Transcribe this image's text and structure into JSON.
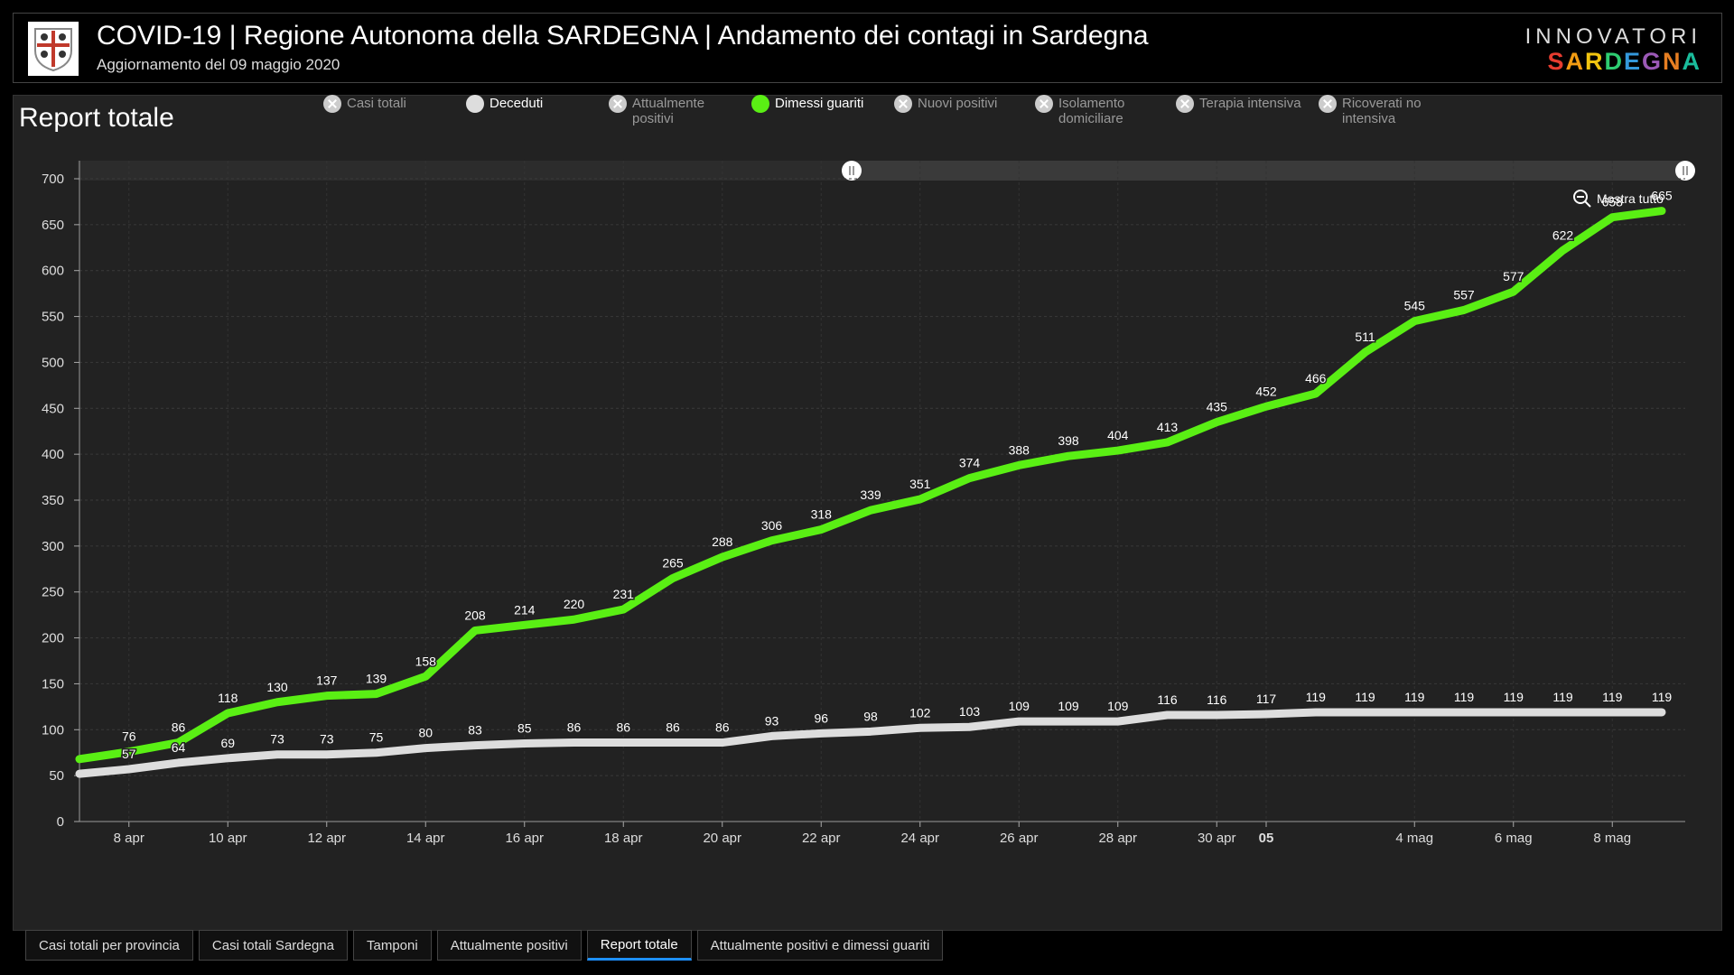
{
  "header": {
    "title": "COVID-19 | Regione Autonoma della SARDEGNA | Andamento dei contagi in Sardegna",
    "subtitle": "Aggiornamento del 09 maggio 2020",
    "brand_top": "INNOVATORI",
    "brand_bottom": "SARDEGNA",
    "brand_colors": [
      "#e63c2f",
      "#f39c12",
      "#f1c40f",
      "#2ecc71",
      "#3498db",
      "#9b59b6",
      "#e67e22",
      "#1abc9c"
    ]
  },
  "panel": {
    "title": "Report totale",
    "zoom_reset_label": "Mostra tutto"
  },
  "chart_data": {
    "type": "line",
    "x": [
      "7 apr",
      "8 apr",
      "9 apr",
      "10 apr",
      "11 apr",
      "12 apr",
      "13 apr",
      "14 apr",
      "15 apr",
      "16 apr",
      "17 apr",
      "18 apr",
      "19 apr",
      "20 apr",
      "21 apr",
      "22 apr",
      "23 apr",
      "24 apr",
      "25 apr",
      "26 apr",
      "27 apr",
      "28 apr",
      "29 apr",
      "30 apr",
      "1 mag",
      "2 mag",
      "3 mag",
      "4 mag",
      "5 mag",
      "6 mag",
      "7 mag",
      "8 mag",
      "9 mag"
    ],
    "x_ticks": [
      "8 apr",
      "10 apr",
      "12 apr",
      "14 apr",
      "16 apr",
      "18 apr",
      "20 apr",
      "22 apr",
      "24 apr",
      "26 apr",
      "28 apr",
      "30 apr",
      "05",
      "4 mag",
      "6 mag",
      "8 mag"
    ],
    "ylim": [
      0,
      700
    ],
    "y_ticks": [
      0,
      50,
      100,
      150,
      200,
      250,
      300,
      350,
      400,
      450,
      500,
      550,
      600,
      650,
      700
    ],
    "grid": true,
    "series": [
      {
        "name": "Dimessi guariti",
        "color": "#5aef14",
        "values": [
          68,
          76,
          86,
          118,
          130,
          137,
          139,
          158,
          208,
          214,
          220,
          231,
          265,
          288,
          306,
          318,
          339,
          351,
          374,
          388,
          398,
          404,
          413,
          435,
          452,
          466,
          511,
          545,
          557,
          577,
          622,
          658,
          665
        ]
      },
      {
        "name": "Deceduti",
        "color": "#dddddd",
        "values": [
          52,
          57,
          64,
          69,
          73,
          73,
          75,
          80,
          83,
          85,
          86,
          86,
          86,
          86,
          93,
          96,
          98,
          102,
          103,
          109,
          109,
          109,
          116,
          116,
          117,
          119,
          119,
          119,
          119,
          119,
          119,
          119,
          119
        ]
      }
    ]
  },
  "legend": [
    {
      "label": "Casi totali",
      "active": false
    },
    {
      "label": "Deceduti",
      "active": true,
      "color": "#dddddd"
    },
    {
      "label": "Attualmente positivi",
      "active": false
    },
    {
      "label": "Dimessi guariti",
      "active": true,
      "color": "#5aef14"
    },
    {
      "label": "Nuovi positivi",
      "active": false
    },
    {
      "label": "Isolamento domiciliare",
      "active": false
    },
    {
      "label": "Terapia intensiva",
      "active": false
    },
    {
      "label": "Ricoverati no intensiva",
      "active": false
    }
  ],
  "tabs": [
    {
      "label": "Casi totali per provincia",
      "active": false
    },
    {
      "label": "Casi totali Sardegna",
      "active": false
    },
    {
      "label": "Tamponi",
      "active": false
    },
    {
      "label": "Attualmente positivi",
      "active": false
    },
    {
      "label": "Report totale",
      "active": true
    },
    {
      "label": "Attualmente positivi e dimessi guariti",
      "active": false
    }
  ]
}
